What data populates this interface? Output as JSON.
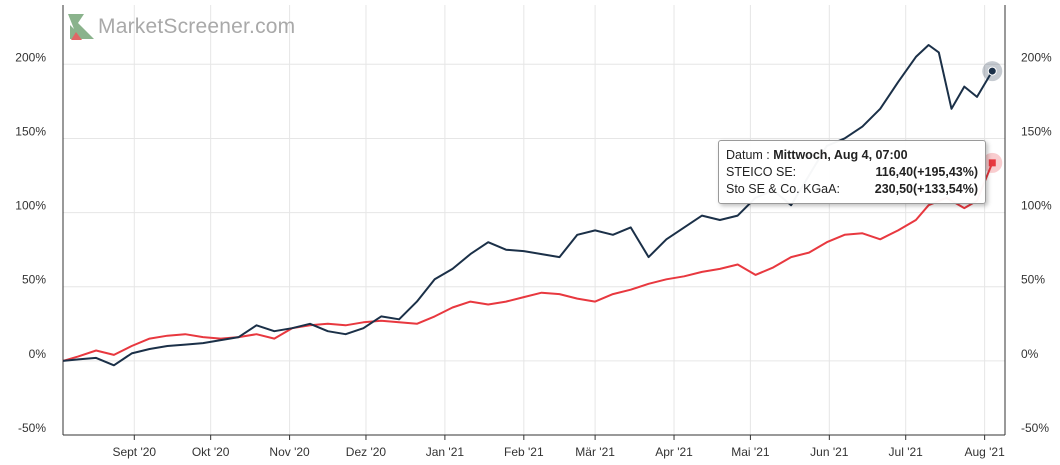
{
  "logo": {
    "text": "MarketScreener.com"
  },
  "tooltip": {
    "date_label": "Datum : ",
    "date_value": "Mittwoch, Aug 4, 07:00",
    "rows": [
      {
        "label": "STEICO SE:",
        "value": "116,40(+195,43%)"
      },
      {
        "label": "Sto SE & Co. KGaA:",
        "value": "230,50(+133,54%)"
      }
    ]
  },
  "colors": {
    "steico": "#1b3048",
    "sto": "#e8383f",
    "grid": "#e6e6e6"
  },
  "chart_data": {
    "type": "line",
    "title": "",
    "xlabel": "",
    "ylabel": "",
    "ylim": [
      -50,
      240
    ],
    "y_ticks": [
      -50,
      0,
      50,
      100,
      150,
      200
    ],
    "y_tick_labels": [
      "-50%",
      "0%",
      "50%",
      "100%",
      "150%",
      "200%"
    ],
    "x_range": [
      "2020-08-04",
      "2021-08-09"
    ],
    "x_ticks": [
      "2020-09-01",
      "2020-10-01",
      "2020-11-01",
      "2020-12-01",
      "2021-01-01",
      "2021-02-01",
      "2021-03-01",
      "2021-04-01",
      "2021-05-01",
      "2021-06-01",
      "2021-07-01",
      "2021-08-01"
    ],
    "x_tick_labels": [
      "Sept '20",
      "Okt '20",
      "Nov '20",
      "Dez '20",
      "Jan '21",
      "Feb '21",
      "Mär '21",
      "Apr '21",
      "Mai '21",
      "Jun '21",
      "Jul '21",
      "Aug '21"
    ],
    "grid": true,
    "legend": "none",
    "series": [
      {
        "name": "STEICO SE",
        "points": [
          [
            "2020-08-04",
            0
          ],
          [
            "2020-08-10",
            1
          ],
          [
            "2020-08-17",
            2
          ],
          [
            "2020-08-24",
            -3
          ],
          [
            "2020-08-31",
            5
          ],
          [
            "2020-09-07",
            8
          ],
          [
            "2020-09-14",
            10
          ],
          [
            "2020-09-21",
            11
          ],
          [
            "2020-09-28",
            12
          ],
          [
            "2020-10-05",
            14
          ],
          [
            "2020-10-12",
            16
          ],
          [
            "2020-10-19",
            24
          ],
          [
            "2020-10-26",
            20
          ],
          [
            "2020-11-02",
            22
          ],
          [
            "2020-11-09",
            25
          ],
          [
            "2020-11-16",
            20
          ],
          [
            "2020-11-23",
            18
          ],
          [
            "2020-11-30",
            22
          ],
          [
            "2020-12-07",
            30
          ],
          [
            "2020-12-14",
            28
          ],
          [
            "2020-12-21",
            40
          ],
          [
            "2020-12-28",
            55
          ],
          [
            "2021-01-04",
            62
          ],
          [
            "2021-01-11",
            72
          ],
          [
            "2021-01-18",
            80
          ],
          [
            "2021-01-25",
            75
          ],
          [
            "2021-02-01",
            74
          ],
          [
            "2021-02-08",
            72
          ],
          [
            "2021-02-15",
            70
          ],
          [
            "2021-02-22",
            85
          ],
          [
            "2021-03-01",
            88
          ],
          [
            "2021-03-08",
            85
          ],
          [
            "2021-03-15",
            90
          ],
          [
            "2021-03-22",
            70
          ],
          [
            "2021-03-29",
            82
          ],
          [
            "2021-04-05",
            90
          ],
          [
            "2021-04-12",
            98
          ],
          [
            "2021-04-19",
            95
          ],
          [
            "2021-04-26",
            98
          ],
          [
            "2021-05-03",
            110
          ],
          [
            "2021-05-10",
            115
          ],
          [
            "2021-05-17",
            105
          ],
          [
            "2021-05-24",
            125
          ],
          [
            "2021-05-31",
            145
          ],
          [
            "2021-06-07",
            150
          ],
          [
            "2021-06-14",
            158
          ],
          [
            "2021-06-21",
            170
          ],
          [
            "2021-06-28",
            188
          ],
          [
            "2021-07-05",
            205
          ],
          [
            "2021-07-10",
            213
          ],
          [
            "2021-07-14",
            208
          ],
          [
            "2021-07-19",
            170
          ],
          [
            "2021-07-24",
            185
          ],
          [
            "2021-07-29",
            178
          ],
          [
            "2021-08-04",
            195.43
          ]
        ]
      },
      {
        "name": "Sto SE & Co. KGaA",
        "points": [
          [
            "2020-08-04",
            0
          ],
          [
            "2020-08-10",
            3
          ],
          [
            "2020-08-17",
            7
          ],
          [
            "2020-08-24",
            4
          ],
          [
            "2020-08-31",
            10
          ],
          [
            "2020-09-07",
            15
          ],
          [
            "2020-09-14",
            17
          ],
          [
            "2020-09-21",
            18
          ],
          [
            "2020-09-28",
            16
          ],
          [
            "2020-10-05",
            15
          ],
          [
            "2020-10-12",
            16
          ],
          [
            "2020-10-19",
            18
          ],
          [
            "2020-10-26",
            15
          ],
          [
            "2020-11-02",
            22
          ],
          [
            "2020-11-09",
            24
          ],
          [
            "2020-11-16",
            25
          ],
          [
            "2020-11-23",
            24
          ],
          [
            "2020-11-30",
            26
          ],
          [
            "2020-12-07",
            27
          ],
          [
            "2020-12-14",
            26
          ],
          [
            "2020-12-21",
            25
          ],
          [
            "2020-12-28",
            30
          ],
          [
            "2021-01-04",
            36
          ],
          [
            "2021-01-11",
            40
          ],
          [
            "2021-01-18",
            38
          ],
          [
            "2021-01-25",
            40
          ],
          [
            "2021-02-01",
            43
          ],
          [
            "2021-02-08",
            46
          ],
          [
            "2021-02-15",
            45
          ],
          [
            "2021-02-22",
            42
          ],
          [
            "2021-03-01",
            40
          ],
          [
            "2021-03-08",
            45
          ],
          [
            "2021-03-15",
            48
          ],
          [
            "2021-03-22",
            52
          ],
          [
            "2021-03-29",
            55
          ],
          [
            "2021-04-05",
            57
          ],
          [
            "2021-04-12",
            60
          ],
          [
            "2021-04-19",
            62
          ],
          [
            "2021-04-26",
            65
          ],
          [
            "2021-05-03",
            58
          ],
          [
            "2021-05-10",
            63
          ],
          [
            "2021-05-17",
            70
          ],
          [
            "2021-05-24",
            73
          ],
          [
            "2021-05-31",
            80
          ],
          [
            "2021-06-07",
            85
          ],
          [
            "2021-06-14",
            86
          ],
          [
            "2021-06-21",
            82
          ],
          [
            "2021-06-28",
            88
          ],
          [
            "2021-07-05",
            95
          ],
          [
            "2021-07-10",
            105
          ],
          [
            "2021-07-17",
            110
          ],
          [
            "2021-07-24",
            103
          ],
          [
            "2021-07-29",
            108
          ],
          [
            "2021-08-04",
            133.54
          ]
        ]
      }
    ]
  }
}
